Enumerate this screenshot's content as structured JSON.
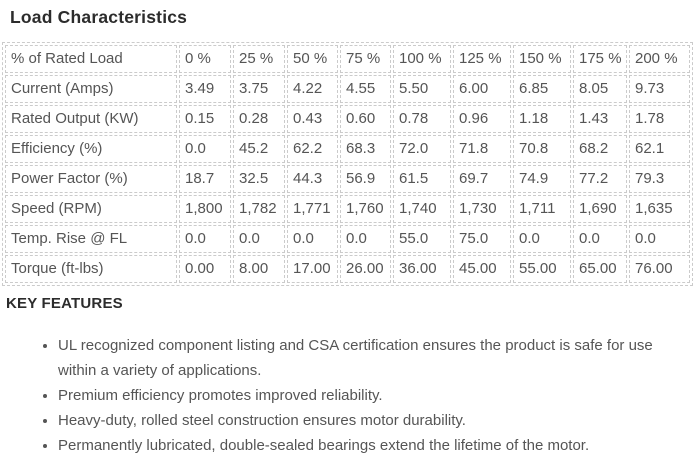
{
  "title": "Load Characteristics",
  "table": {
    "rows": [
      {
        "cells": [
          "% of Rated Load",
          "0 %",
          "25 %",
          "50 %",
          "75 %",
          "100 %",
          "125 %",
          "150 %",
          "175 %",
          "200 %"
        ]
      },
      {
        "cells": [
          "Current (Amps)",
          "3.49",
          "3.75",
          "4.22",
          "4.55",
          "5.50",
          "6.00",
          "6.85",
          "8.05",
          "9.73"
        ]
      },
      {
        "cells": [
          "Rated Output (KW)",
          "0.15",
          "0.28",
          "0.43",
          "0.60",
          "0.78",
          "0.96",
          "1.18",
          "1.43",
          "1.78"
        ]
      },
      {
        "cells": [
          "Efficiency (%)",
          "0.0",
          "45.2",
          "62.2",
          "68.3",
          "72.0",
          "71.8",
          "70.8",
          "68.2",
          "62.1"
        ]
      },
      {
        "cells": [
          "Power Factor (%)",
          "18.7",
          "32.5",
          "44.3",
          "56.9",
          "61.5",
          "69.7",
          "74.9",
          "77.2",
          "79.3"
        ]
      },
      {
        "cells": [
          "Speed (RPM)",
          "1,800",
          "1,782",
          "1,771",
          "1,760",
          "1,740",
          "1,730",
          "1,711",
          "1,690",
          "1,635"
        ]
      },
      {
        "cells": [
          "Temp. Rise @ FL",
          "0.0",
          "0.0",
          "0.0",
          "0.0",
          "55.0",
          "75.0",
          "0.0",
          "0.0",
          "0.0"
        ]
      },
      {
        "cells": [
          "Torque (ft-lbs)",
          "0.00",
          "8.00",
          "17.00",
          "26.00",
          "36.00",
          "45.00",
          "55.00",
          "65.00",
          "76.00"
        ]
      }
    ]
  },
  "key_features": {
    "heading": "KEY FEATURES",
    "items": [
      "UL recognized component listing and CSA certification ensures the product is safe for use within a variety of applications.",
      "Premium efficiency promotes improved reliability.",
      "Heavy-duty, rolled steel construction ensures motor durability.",
      "Permanently lubricated, double-sealed bearings extend the lifetime of the motor."
    ]
  },
  "colors": {
    "heading_text": "#2c2c2c",
    "body_text": "#555555",
    "table_border": "#cbcbcb",
    "background": "#ffffff"
  }
}
